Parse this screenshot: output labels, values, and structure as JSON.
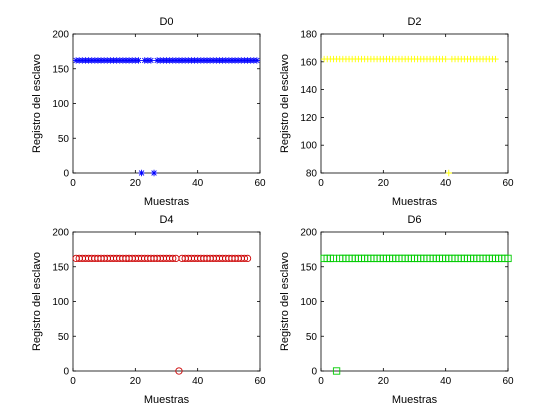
{
  "chart_data": [
    {
      "type": "scatter",
      "title": "D0",
      "xlabel": "Muestras",
      "ylabel": "Registro del esclavo",
      "xlim": [
        0,
        60
      ],
      "ylim": [
        0,
        200
      ],
      "xticks": [
        0,
        20,
        40,
        60
      ],
      "yticks": [
        0,
        50,
        100,
        150,
        200
      ],
      "marker": "star",
      "color": "#0000ff",
      "series": [
        {
          "x": [
            1,
            2,
            3,
            4,
            5,
            6,
            7,
            8,
            9,
            10,
            11,
            12,
            13,
            14,
            15,
            16,
            17,
            18,
            19,
            20,
            21,
            22,
            23,
            24,
            25,
            26,
            27,
            28,
            29,
            30,
            31,
            32,
            33,
            34,
            35,
            36,
            37,
            38,
            39,
            40,
            41,
            42,
            43,
            44,
            45,
            46,
            47,
            48,
            49,
            50,
            51,
            52,
            53,
            54,
            55,
            56,
            57,
            58,
            59
          ],
          "y": [
            162,
            162,
            162,
            162,
            162,
            162,
            162,
            162,
            162,
            162,
            162,
            162,
            162,
            162,
            162,
            162,
            162,
            162,
            162,
            162,
            162,
            0,
            162,
            162,
            162,
            0,
            162,
            162,
            162,
            162,
            162,
            162,
            162,
            162,
            162,
            162,
            162,
            162,
            162,
            162,
            162,
            162,
            162,
            162,
            162,
            162,
            162,
            162,
            162,
            162,
            162,
            162,
            162,
            162,
            162,
            162,
            162,
            162,
            162
          ]
        }
      ]
    },
    {
      "type": "scatter",
      "title": "D2",
      "xlabel": "Muestras",
      "ylabel": "Registro del esclavo",
      "xlim": [
        0,
        60
      ],
      "ylim": [
        80,
        180
      ],
      "xticks": [
        0,
        20,
        40,
        60
      ],
      "yticks": [
        80,
        100,
        120,
        140,
        160,
        180
      ],
      "marker": "plus",
      "color": "#ffff00",
      "series": [
        {
          "x": [
            1,
            2,
            3,
            4,
            5,
            6,
            7,
            8,
            9,
            10,
            11,
            12,
            13,
            14,
            15,
            16,
            17,
            18,
            19,
            20,
            21,
            22,
            23,
            24,
            25,
            26,
            27,
            28,
            29,
            30,
            31,
            32,
            33,
            34,
            35,
            36,
            37,
            38,
            39,
            40,
            41,
            42,
            43,
            44,
            45,
            46,
            47,
            48,
            49,
            50,
            51,
            52,
            53,
            54,
            55,
            56
          ],
          "y": [
            162,
            162,
            162,
            162,
            162,
            162,
            162,
            162,
            162,
            162,
            162,
            162,
            162,
            162,
            162,
            162,
            162,
            162,
            162,
            162,
            162,
            162,
            162,
            162,
            162,
            162,
            162,
            162,
            162,
            162,
            162,
            162,
            162,
            162,
            162,
            162,
            162,
            162,
            162,
            162,
            80,
            162,
            162,
            162,
            162,
            162,
            162,
            162,
            162,
            162,
            162,
            162,
            162,
            162,
            162,
            162
          ]
        }
      ]
    },
    {
      "type": "scatter",
      "title": "D4",
      "xlabel": "Muestras",
      "ylabel": "Registro del esclavo",
      "xlim": [
        0,
        60
      ],
      "ylim": [
        0,
        200
      ],
      "xticks": [
        0,
        20,
        40,
        60
      ],
      "yticks": [
        0,
        50,
        100,
        150,
        200
      ],
      "marker": "circle",
      "color": "#cc0000",
      "series": [
        {
          "x": [
            1,
            2,
            3,
            4,
            5,
            6,
            7,
            8,
            9,
            10,
            11,
            12,
            13,
            14,
            15,
            16,
            17,
            18,
            19,
            20,
            21,
            22,
            23,
            24,
            25,
            26,
            27,
            28,
            29,
            30,
            31,
            32,
            33,
            34,
            35,
            36,
            37,
            38,
            39,
            40,
            41,
            42,
            43,
            44,
            45,
            46,
            47,
            48,
            49,
            50,
            51,
            52,
            53,
            54,
            55,
            56
          ],
          "y": [
            162,
            162,
            162,
            162,
            162,
            162,
            162,
            162,
            162,
            162,
            162,
            162,
            162,
            162,
            162,
            162,
            162,
            162,
            162,
            162,
            162,
            162,
            162,
            162,
            162,
            162,
            162,
            162,
            162,
            162,
            162,
            162,
            162,
            0,
            162,
            162,
            162,
            162,
            162,
            162,
            162,
            162,
            162,
            162,
            162,
            162,
            162,
            162,
            162,
            162,
            162,
            162,
            162,
            162,
            162,
            162
          ]
        }
      ]
    },
    {
      "type": "scatter",
      "title": "D6",
      "xlabel": "Muestras",
      "ylabel": "Registro del esclavo",
      "xlim": [
        0,
        60
      ],
      "ylim": [
        0,
        200
      ],
      "xticks": [
        0,
        20,
        40,
        60
      ],
      "yticks": [
        0,
        50,
        100,
        150,
        200
      ],
      "marker": "square",
      "color": "#00cc00",
      "series": [
        {
          "x": [
            1,
            2,
            3,
            4,
            5,
            6,
            7,
            8,
            9,
            10,
            11,
            12,
            13,
            14,
            15,
            16,
            17,
            18,
            19,
            20,
            21,
            22,
            23,
            24,
            25,
            26,
            27,
            28,
            29,
            30,
            31,
            32,
            33,
            34,
            35,
            36,
            37,
            38,
            39,
            40,
            41,
            42,
            43,
            44,
            45,
            46,
            47,
            48,
            49,
            50,
            51,
            52,
            53,
            54,
            55,
            56,
            57,
            58,
            59,
            60
          ],
          "y": [
            162,
            162,
            162,
            162,
            0,
            162,
            162,
            162,
            162,
            162,
            162,
            162,
            162,
            162,
            162,
            162,
            162,
            162,
            162,
            162,
            162,
            162,
            162,
            162,
            162,
            162,
            162,
            162,
            162,
            162,
            162,
            162,
            162,
            162,
            162,
            162,
            162,
            162,
            162,
            162,
            162,
            162,
            162,
            162,
            162,
            162,
            162,
            162,
            162,
            162,
            162,
            162,
            162,
            162,
            162,
            162,
            162,
            162,
            162,
            162
          ]
        }
      ]
    }
  ]
}
